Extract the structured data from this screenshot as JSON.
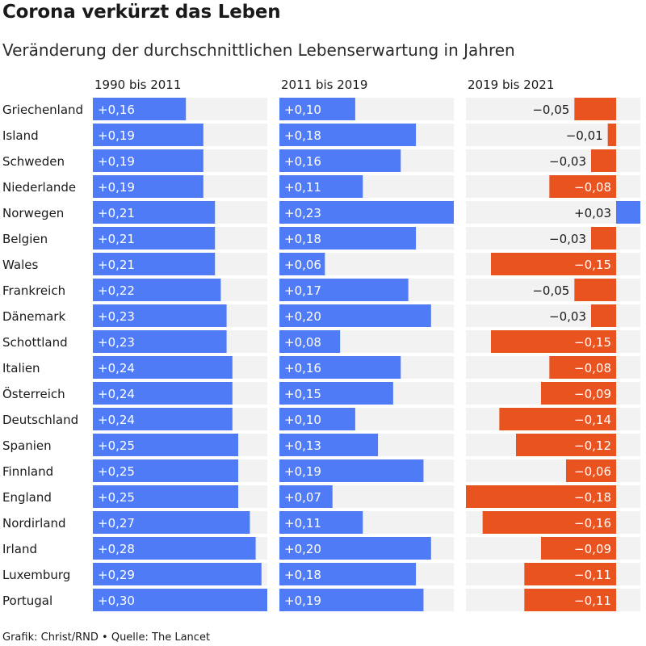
{
  "title": "Corona verkürzt das Leben",
  "subtitle": "Veränderung der durchschnittlichen Lebenserwartung in Jahren",
  "source": "Grafik: Christ/RND • Quelle: The Lancet",
  "colors": {
    "positive": "#4f7bf7",
    "negative": "#e8531f",
    "track": "#f2f2f2",
    "text": "#1a1a1a",
    "label_on_bar": "#ffffff"
  },
  "chart_data": {
    "type": "bar",
    "orientation": "horizontal",
    "categories": [
      "Griechenland",
      "Island",
      "Schweden",
      "Niederlande",
      "Norwegen",
      "Belgien",
      "Wales",
      "Frankreich",
      "Dänemark",
      "Schottland",
      "Italien",
      "Österreich",
      "Deutschland",
      "Spanien",
      "Finnland",
      "England",
      "Nordirland",
      "Irland",
      "Luxemburg",
      "Portugal"
    ],
    "series": [
      {
        "name": "1990 bis 2011",
        "values": [
          0.16,
          0.19,
          0.19,
          0.19,
          0.21,
          0.21,
          0.21,
          0.22,
          0.23,
          0.23,
          0.24,
          0.24,
          0.24,
          0.25,
          0.25,
          0.25,
          0.27,
          0.28,
          0.29,
          0.3
        ],
        "labels": [
          "+0,16",
          "+0,19",
          "+0,19",
          "+0,19",
          "+0,21",
          "+0,21",
          "+0,21",
          "+0,22",
          "+0,23",
          "+0,23",
          "+0,24",
          "+0,24",
          "+0,24",
          "+0,25",
          "+0,25",
          "+0,25",
          "+0,27",
          "+0,28",
          "+0,29",
          "+0,30"
        ],
        "range": [
          0,
          0.3
        ]
      },
      {
        "name": "2011 bis 2019",
        "values": [
          0.1,
          0.18,
          0.16,
          0.11,
          0.23,
          0.18,
          0.06,
          0.17,
          0.2,
          0.08,
          0.16,
          0.15,
          0.1,
          0.13,
          0.19,
          0.07,
          0.11,
          0.2,
          0.18,
          0.19
        ],
        "labels": [
          "+0,10",
          "+0,18",
          "+0,16",
          "+0,11",
          "+0,23",
          "+0,18",
          "+0,06",
          "+0,17",
          "+0,20",
          "+0,08",
          "+0,16",
          "+0,15",
          "+0,10",
          "+0,13",
          "+0,19",
          "+0,07",
          "+0,11",
          "+0,20",
          "+0,18",
          "+0,19"
        ],
        "range": [
          0,
          0.23
        ]
      },
      {
        "name": "2019 bis 2021",
        "values": [
          -0.05,
          -0.01,
          -0.03,
          -0.08,
          0.03,
          -0.03,
          -0.15,
          -0.05,
          -0.03,
          -0.15,
          -0.08,
          -0.09,
          -0.14,
          -0.12,
          -0.06,
          -0.18,
          -0.16,
          -0.09,
          -0.11,
          -0.11
        ],
        "labels": [
          "−0,05",
          "−0,01",
          "−0,03",
          "−0,08",
          "+0,03",
          "−0,03",
          "−0,15",
          "−0,05",
          "−0,03",
          "−0,15",
          "−0,08",
          "−0,09",
          "−0,14",
          "−0,12",
          "−0,06",
          "−0,18",
          "−0,16",
          "−0,09",
          "−0,11",
          "−0,11"
        ],
        "range": [
          -0.18,
          0.03
        ]
      }
    ],
    "grid": false,
    "legend": "none"
  }
}
